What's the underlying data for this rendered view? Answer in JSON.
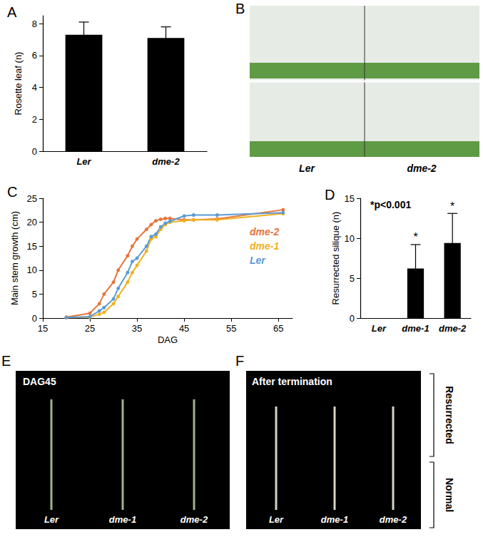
{
  "chart_data": [
    {
      "title": "A",
      "type": "bar",
      "categories": [
        "Ler",
        "dme-2"
      ],
      "values": [
        7.3,
        7.1
      ],
      "errors": [
        0.8,
        0.7
      ],
      "color": "#000000",
      "y_label": "Rosette leaf (n)",
      "ylim": [
        0,
        8.5
      ],
      "yticks": [
        0,
        2,
        4,
        6,
        8
      ],
      "grid": false
    },
    {
      "title": "C",
      "type": "line",
      "x": [
        20,
        25,
        27,
        28,
        30,
        31,
        33,
        34,
        35,
        37,
        38,
        39,
        40,
        41,
        42,
        45,
        47,
        52,
        66
      ],
      "series": [
        {
          "name": "dme-2",
          "color": "#e8743b",
          "values": [
            0.2,
            1,
            3,
            5,
            7.5,
            10,
            13,
            15,
            16.5,
            18.5,
            19.5,
            20.3,
            20.6,
            20.8,
            20.8,
            20.5,
            20.5,
            20.7,
            22.6
          ]
        },
        {
          "name": "dme-1",
          "color": "#f2b01e",
          "values": [
            0.1,
            0.2,
            0.8,
            1.2,
            3,
            4.5,
            7.5,
            9.5,
            11,
            14,
            16.5,
            17,
            18.5,
            19.5,
            20,
            20.3,
            20.5,
            20.5,
            21.8
          ]
        },
        {
          "name": "Ler",
          "color": "#5b9bd5",
          "values": [
            0.1,
            0.3,
            1.5,
            2.2,
            4,
            6.2,
            9.5,
            11.8,
            12.5,
            15,
            17,
            17.5,
            19,
            19.8,
            20.2,
            21.3,
            21.5,
            21.5,
            22
          ]
        }
      ],
      "x_label": "DAG",
      "y_label": "Main stem growth (cm)",
      "xlim": [
        15,
        68
      ],
      "xticks": [
        15,
        25,
        35,
        45,
        55,
        65
      ],
      "ylim": [
        0,
        25
      ],
      "yticks": [
        0,
        5,
        10,
        15,
        20,
        25
      ],
      "grid": false,
      "legend": "right",
      "marker": "circle"
    },
    {
      "title": "D",
      "type": "bar",
      "categories": [
        "Ler",
        "dme-1",
        "dme-2"
      ],
      "values": [
        0,
        6.2,
        9.4
      ],
      "errors": [
        0,
        3.0,
        3.7
      ],
      "color": "#000000",
      "y_label": "Resurrected silique (n)",
      "ylim": [
        0,
        15
      ],
      "yticks": [
        0,
        5,
        10,
        15
      ],
      "grid": false,
      "annotations": [
        {
          "text": "*p<0.001"
        },
        {
          "text": "*",
          "category": "dme-1"
        },
        {
          "text": "*",
          "category": "dme-2"
        }
      ]
    }
  ],
  "panels": [
    {
      "letter": "B",
      "labels": [
        "Ler",
        "dme-2"
      ]
    },
    {
      "letter": "E",
      "title": "DAG45",
      "labels": [
        "Ler",
        "dme-1",
        "dme-2"
      ]
    },
    {
      "letter": "F",
      "title": "After termination",
      "labels": [
        "Ler",
        "dme-1",
        "dme-2"
      ],
      "brackets": [
        "Resurrected",
        "Normal"
      ]
    }
  ]
}
